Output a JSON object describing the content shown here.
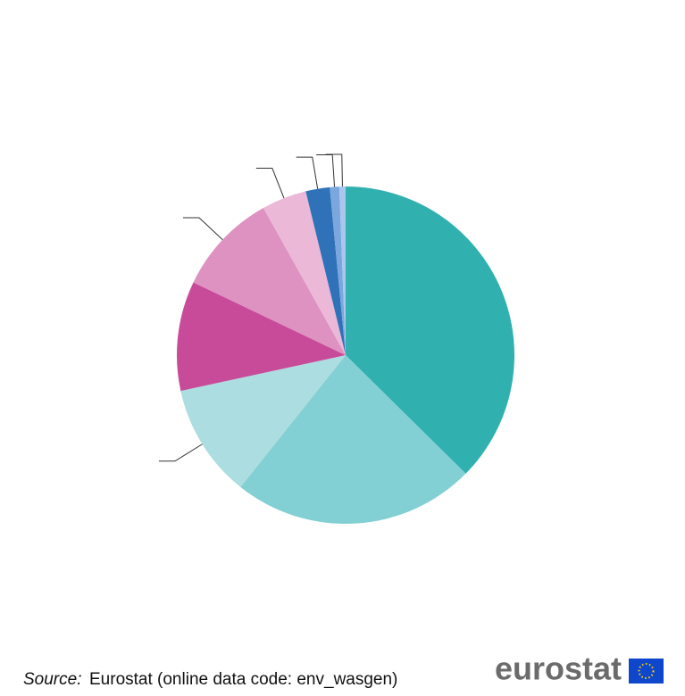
{
  "chart_data": {
    "type": "pie",
    "categories": [
      null,
      null,
      null,
      null,
      null,
      null,
      null,
      null,
      null
    ],
    "values": [
      37.4,
      23.3,
      10.9,
      10.5,
      9.8,
      4.3,
      2.3,
      0.9,
      0.6
    ],
    "colors": [
      "#31b0b0",
      "#82d0d3",
      "#acdde0",
      "#c84b9a",
      "#de92c1",
      "#ebb8d8",
      "#2f72b8",
      "#7aa8de",
      "#a9c6ec"
    ]
  },
  "footer": {
    "source_label": "Source:",
    "source_text": "Eurostat (online data code: env_wasgen)",
    "logo": "eurostat"
  }
}
